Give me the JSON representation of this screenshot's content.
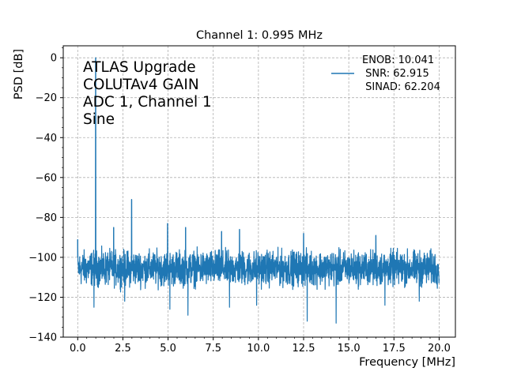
{
  "chart_data": {
    "type": "line",
    "title": "Channel 1: 0.995 MHz",
    "xlabel": "Frequency [MHz]",
    "ylabel": "PSD [dB]",
    "xlim": [
      -0.8,
      20.9
    ],
    "ylim": [
      -140,
      6
    ],
    "xticks": [
      0.0,
      2.5,
      5.0,
      7.5,
      10.0,
      12.5,
      15.0,
      17.5,
      20.0
    ],
    "xtick_labels": [
      "0.0",
      "2.5",
      "5.0",
      "7.5",
      "10.0",
      "12.5",
      "15.0",
      "17.5",
      "20.0"
    ],
    "yticks": [
      0,
      -20,
      -40,
      -60,
      -80,
      -100,
      -120,
      -140
    ],
    "ytick_labels": [
      "0",
      "−20",
      "−40",
      "−60",
      "−80",
      "−100",
      "−120",
      "−140"
    ],
    "grid": true,
    "legend_position": "upper right",
    "color": "#1f77b4",
    "annotation_lines": [
      "ATLAS Upgrade",
      "COLUTAv4 GAIN",
      "ADC 1, Channel 1",
      "Sine"
    ],
    "series": [
      {
        "legend_lines": [
          "ENOB: 10.041",
          " SNR: 62.915",
          " SINAD: 62.204"
        ],
        "noise_floor_db": -103,
        "noise_range_db": [
          -118,
          -93
        ],
        "x_range": [
          0.0,
          20.0
        ],
        "peaks": [
          {
            "x": 0.0,
            "y": -91
          },
          {
            "x": 0.995,
            "y": 0.0
          },
          {
            "x": 1.99,
            "y": -85
          },
          {
            "x": 2.985,
            "y": -71
          },
          {
            "x": 4.975,
            "y": -83
          },
          {
            "x": 5.97,
            "y": -85
          },
          {
            "x": 7.96,
            "y": -87
          },
          {
            "x": 8.955,
            "y": -86
          },
          {
            "x": 12.5,
            "y": -88
          },
          {
            "x": 16.5,
            "y": -89
          }
        ],
        "dips": [
          {
            "x": 0.9,
            "y": -125
          },
          {
            "x": 2.6,
            "y": -122
          },
          {
            "x": 5.1,
            "y": -126
          },
          {
            "x": 6.1,
            "y": -129
          },
          {
            "x": 8.4,
            "y": -125
          },
          {
            "x": 9.9,
            "y": -124
          },
          {
            "x": 12.7,
            "y": -132
          },
          {
            "x": 14.3,
            "y": -133
          },
          {
            "x": 17.0,
            "y": -124
          },
          {
            "x": 18.9,
            "y": -122
          }
        ]
      }
    ]
  }
}
